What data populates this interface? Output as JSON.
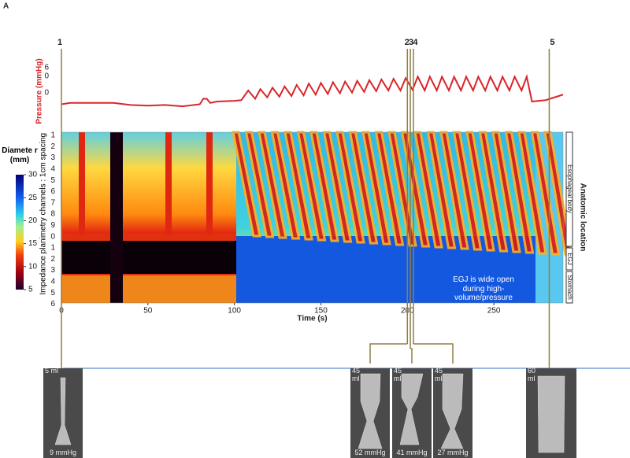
{
  "panel_label": "A",
  "time_markers": [
    {
      "label": "1",
      "time": 0
    },
    {
      "label": "2",
      "time": 200
    },
    {
      "label": "3",
      "time": 201.7
    },
    {
      "label": "4",
      "time": 203.5
    },
    {
      "label": "5",
      "time": 282
    }
  ],
  "pressure": {
    "type": "line",
    "axis_label": "Pressure (mmHg)",
    "tick_labels": [
      "6",
      "0",
      "0"
    ],
    "ylim": [
      -10,
      70
    ],
    "color": "#d9262a",
    "time": [
      0,
      5,
      30,
      40,
      50,
      60,
      70,
      80,
      82,
      84,
      86,
      90,
      100,
      104,
      108,
      112,
      115,
      119,
      122,
      126,
      129,
      133,
      136,
      140,
      143,
      147,
      150,
      154,
      157,
      161,
      164,
      168,
      171,
      175,
      178,
      182,
      185,
      189,
      192,
      196,
      199,
      203,
      206,
      210,
      213,
      217,
      220,
      224,
      227,
      231,
      234,
      238,
      241,
      245,
      248,
      252,
      255,
      259,
      262,
      266,
      269,
      272,
      280,
      290
    ],
    "values": [
      10,
      12,
      12,
      9,
      8,
      9,
      7,
      10,
      18,
      18,
      12,
      14,
      15,
      16,
      30,
      18,
      32,
      20,
      34,
      21,
      36,
      22,
      38,
      23,
      40,
      24,
      41,
      25,
      42,
      26,
      43,
      27,
      44,
      28,
      45,
      29,
      46,
      30,
      47,
      30,
      48,
      31,
      50,
      30,
      50,
      30,
      50,
      30,
      50,
      30,
      50,
      30,
      50,
      30,
      50,
      30,
      50,
      30,
      50,
      30,
      50,
      14,
      16,
      24
    ]
  },
  "heatmap": {
    "x_label": "Time (s)",
    "xlim": [
      0,
      290
    ],
    "xticks": [
      0,
      50,
      100,
      150,
      200,
      250
    ],
    "y_label": "Impedance planimetry channels : 1cm spacing",
    "channel_labels": [
      "1",
      "2",
      "3",
      "4",
      "5",
      "6",
      "7",
      "8",
      "9",
      "0",
      "1",
      "2",
      "3",
      "4",
      "5",
      "6"
    ],
    "colorbar": {
      "label": "Diamete r (mm)",
      "lim": [
        5,
        30
      ],
      "ticks": [
        30,
        25,
        20,
        15,
        10,
        5
      ]
    },
    "location_title": "Anatomic location",
    "regions": [
      "Esophageal body",
      "EGJ",
      "Stomach"
    ],
    "annotation": "EGJ is wide open during high-volume/pressure"
  },
  "images": [
    {
      "volume": "5 ml",
      "pressure": "9 mmHg"
    },
    {
      "volume": "45 ml",
      "pressure": "52 mmHg"
    },
    {
      "volume": "45 ml",
      "pressure": "41 mmHg"
    },
    {
      "volume": "45 ml",
      "pressure": "27 mmHg"
    },
    {
      "volume": "60 ml",
      "pressure": null
    }
  ]
}
